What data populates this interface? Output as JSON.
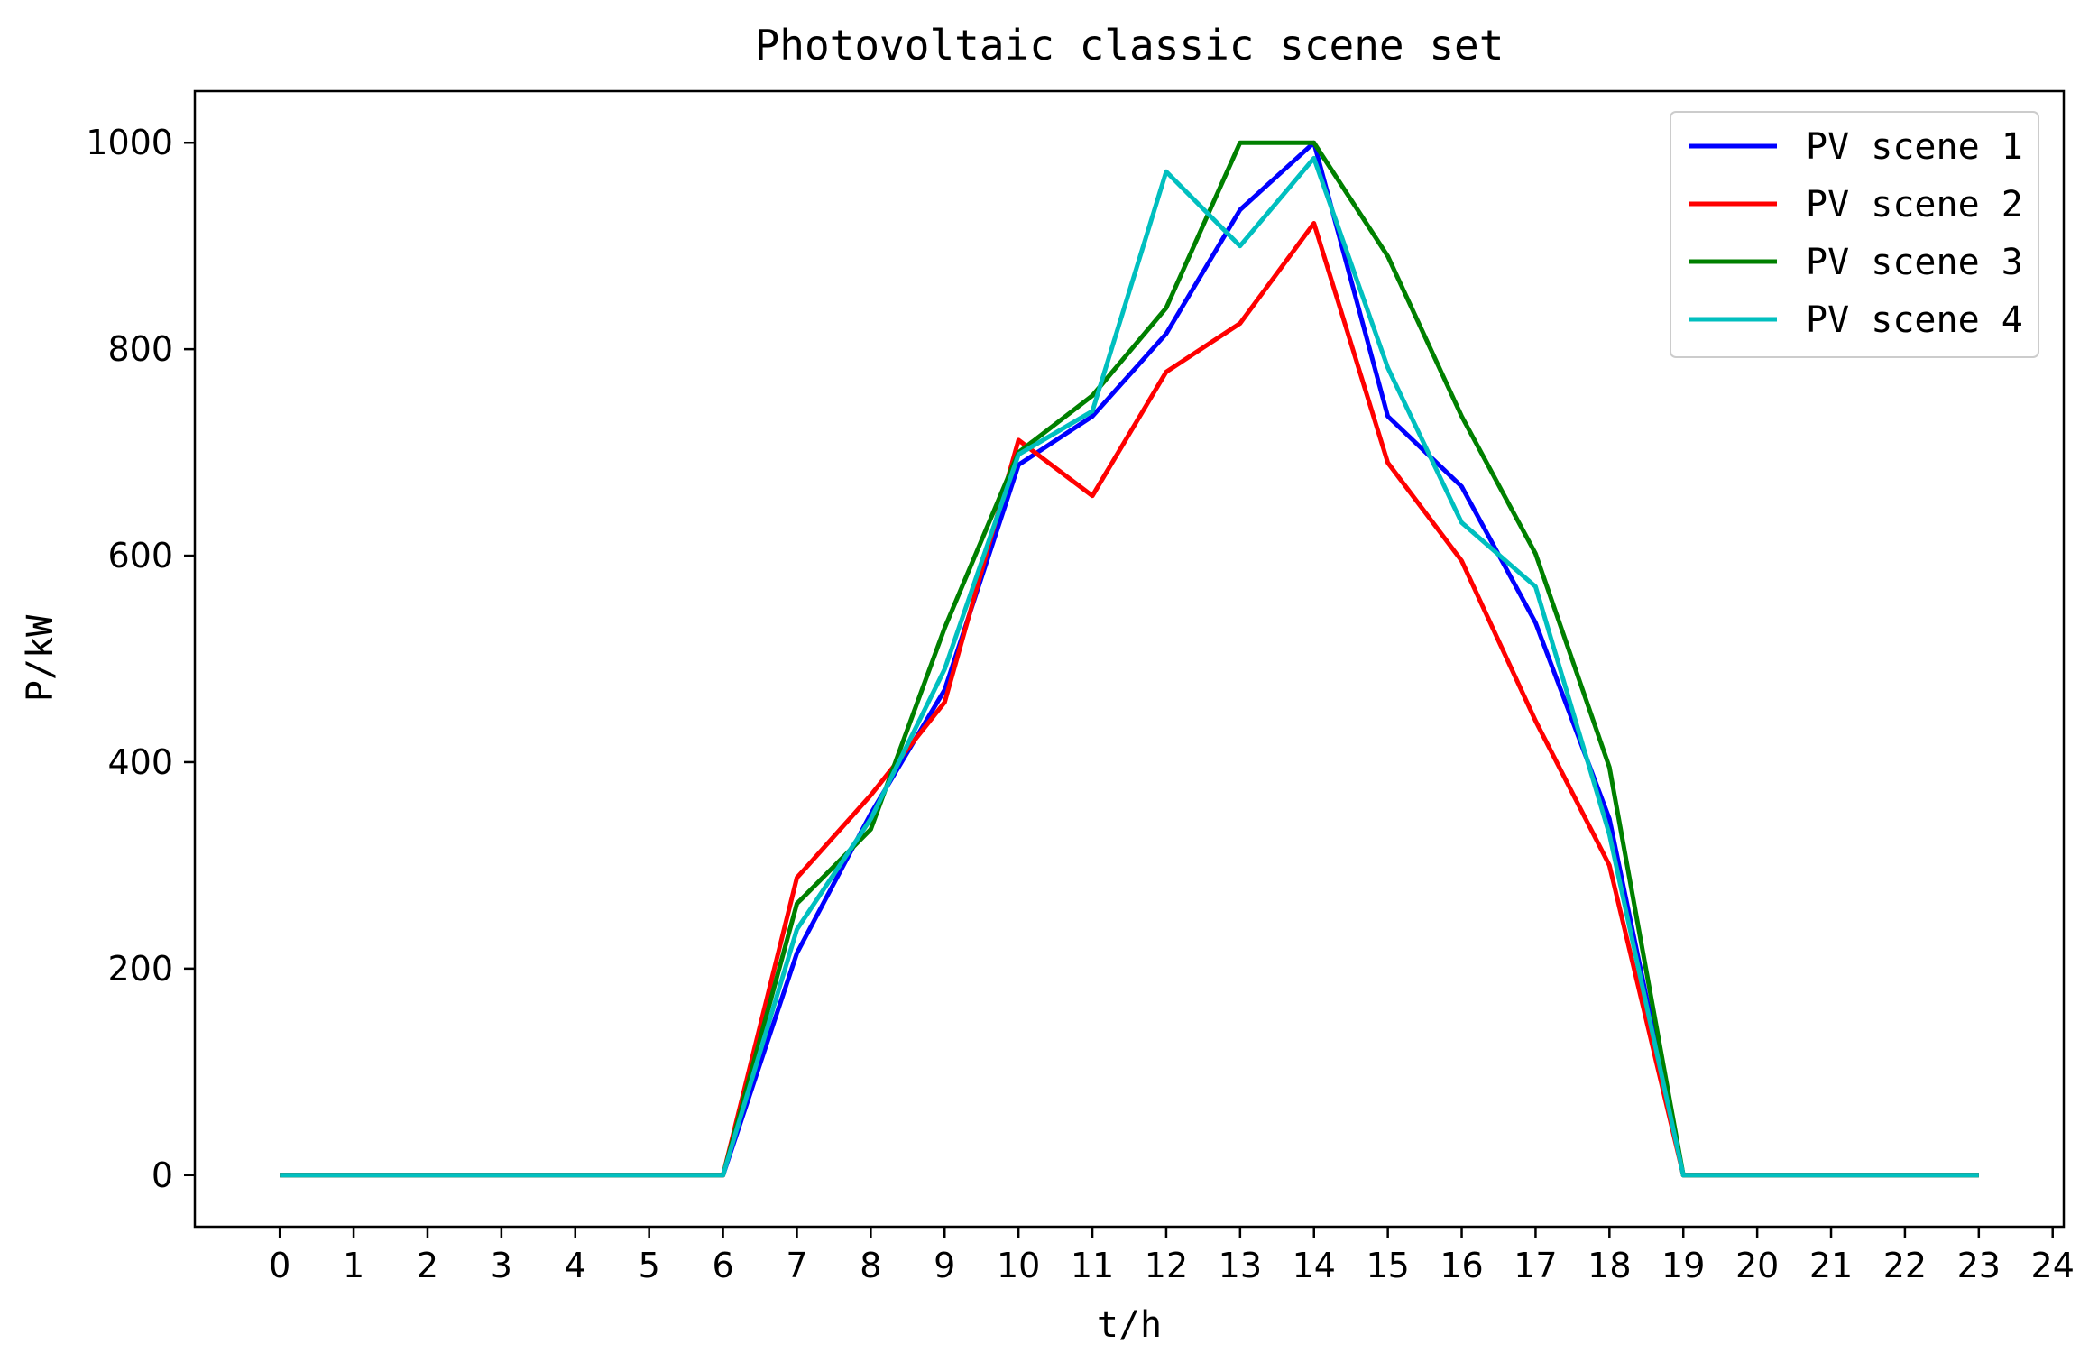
{
  "chart_data": {
    "type": "line",
    "title": "Photovoltaic classic scene set",
    "xlabel": "t/h",
    "ylabel": "P/kW",
    "xlim": [
      -1.15,
      24.15
    ],
    "ylim": [
      -50,
      1050
    ],
    "xticks": [
      0,
      1,
      2,
      3,
      4,
      5,
      6,
      7,
      8,
      9,
      10,
      11,
      12,
      13,
      14,
      15,
      16,
      17,
      18,
      19,
      20,
      21,
      22,
      23,
      24
    ],
    "yticks": [
      0,
      200,
      400,
      600,
      800,
      1000
    ],
    "grid": false,
    "legend_position": "top-right",
    "x": [
      0,
      1,
      2,
      3,
      4,
      5,
      6,
      7,
      8,
      9,
      10,
      11,
      12,
      13,
      14,
      15,
      16,
      17,
      18,
      19,
      20,
      21,
      22,
      23
    ],
    "series": [
      {
        "name": "PV scene 1",
        "color": "#0000ff",
        "values": [
          0,
          0,
          0,
          0,
          0,
          0,
          0,
          215,
          350,
          470,
          688,
          735,
          815,
          935,
          1000,
          735,
          667,
          535,
          345,
          0,
          0,
          0,
          0,
          0
        ]
      },
      {
        "name": "PV scene 2",
        "color": "#ff0000",
        "values": [
          0,
          0,
          0,
          0,
          0,
          0,
          0,
          288,
          368,
          458,
          712,
          658,
          778,
          825,
          922,
          690,
          595,
          440,
          300,
          0,
          0,
          0,
          0,
          0
        ]
      },
      {
        "name": "PV scene 3",
        "color": "#008000",
        "values": [
          0,
          0,
          0,
          0,
          0,
          0,
          0,
          263,
          335,
          530,
          700,
          755,
          840,
          1000,
          1000,
          890,
          735,
          602,
          395,
          0,
          0,
          0,
          0,
          0
        ]
      },
      {
        "name": "PV scene 4",
        "color": "#00bfbf",
        "values": [
          0,
          0,
          0,
          0,
          0,
          0,
          0,
          238,
          345,
          490,
          698,
          740,
          972,
          900,
          985,
          782,
          632,
          570,
          330,
          0,
          0,
          0,
          0,
          0
        ]
      }
    ]
  }
}
